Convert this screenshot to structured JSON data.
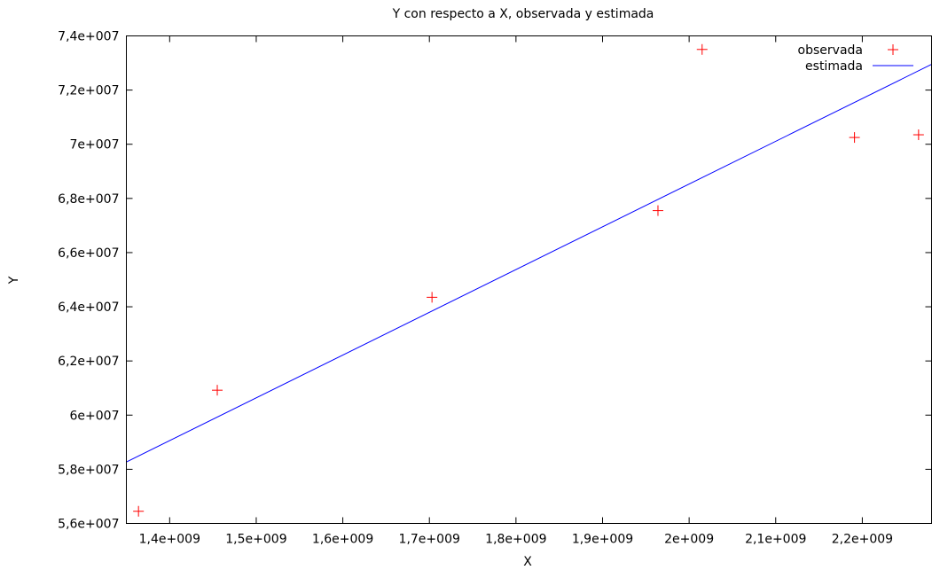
{
  "chart_data": {
    "type": "scatter",
    "title": "Y con respecto a X, observada y estimada",
    "xlabel": "X",
    "ylabel": "Y",
    "xlim": [
      1350000000,
      2280000000
    ],
    "ylim": [
      56000000,
      74000000
    ],
    "x_ticks": [
      {
        "value": 1400000000,
        "label": "1,4e+009"
      },
      {
        "value": 1500000000,
        "label": "1,5e+009"
      },
      {
        "value": 1600000000,
        "label": "1,6e+009"
      },
      {
        "value": 1700000000,
        "label": "1,7e+009"
      },
      {
        "value": 1800000000,
        "label": "1,8e+009"
      },
      {
        "value": 1900000000,
        "label": "1,9e+009"
      },
      {
        "value": 2000000000,
        "label": "2e+009"
      },
      {
        "value": 2100000000,
        "label": "2,1e+009"
      },
      {
        "value": 2200000000,
        "label": "2,2e+009"
      }
    ],
    "y_ticks": [
      {
        "value": 56000000,
        "label": "5,6e+007"
      },
      {
        "value": 58000000,
        "label": "5,8e+007"
      },
      {
        "value": 60000000,
        "label": "6e+007"
      },
      {
        "value": 62000000,
        "label": "6,2e+007"
      },
      {
        "value": 64000000,
        "label": "6,4e+007"
      },
      {
        "value": 66000000,
        "label": "6,6e+007"
      },
      {
        "value": 68000000,
        "label": "6,8e+007"
      },
      {
        "value": 70000000,
        "label": "7e+007"
      },
      {
        "value": 72000000,
        "label": "7,2e+007"
      },
      {
        "value": 74000000,
        "label": "7,4e+007"
      }
    ],
    "series": [
      {
        "name": "observada",
        "kind": "points",
        "marker": "plus",
        "color": "#ff0000",
        "points": [
          {
            "x": 1364000000,
            "y": 56450000
          },
          {
            "x": 1455000000,
            "y": 60920000
          },
          {
            "x": 1703000000,
            "y": 64350000
          },
          {
            "x": 1964000000,
            "y": 67550000
          },
          {
            "x": 2015000000,
            "y": 73500000
          },
          {
            "x": 2191000000,
            "y": 70250000
          },
          {
            "x": 2265000000,
            "y": 70350000
          }
        ]
      },
      {
        "name": "estimada",
        "kind": "line",
        "color": "#0000ff",
        "points": [
          {
            "x": 1350000000,
            "y": 58270000
          },
          {
            "x": 2280000000,
            "y": 72950000
          }
        ]
      }
    ],
    "legend_position": "top-right",
    "grid": false
  }
}
